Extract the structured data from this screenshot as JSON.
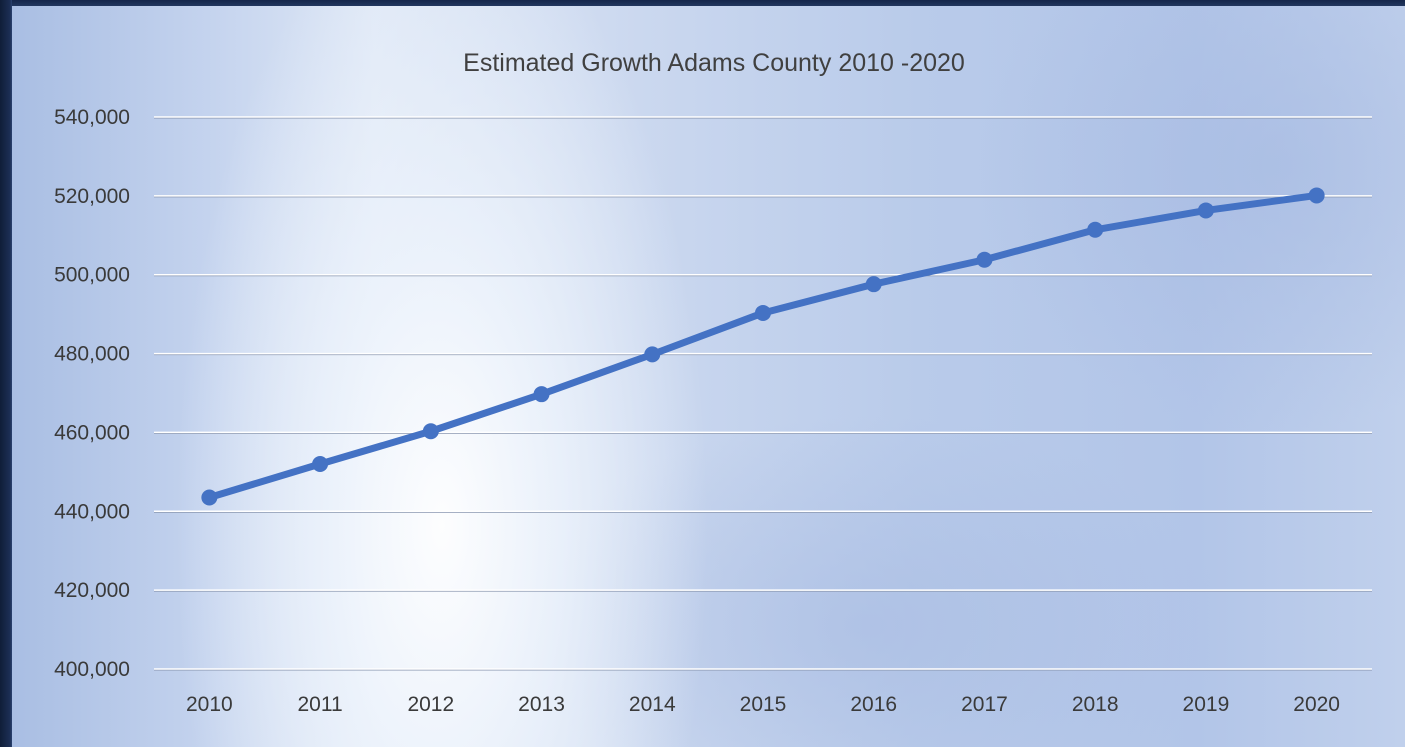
{
  "chart_data": {
    "type": "line",
    "title": "Estimated Growth Adams County  2010 -2020",
    "xlabel": "",
    "ylabel": "",
    "categories": [
      "2010",
      "2011",
      "2012",
      "2013",
      "2014",
      "2015",
      "2016",
      "2017",
      "2018",
      "2019",
      "2020"
    ],
    "series": [
      {
        "values": [
          443500,
          452000,
          460300,
          469700,
          479800,
          490300,
          497600,
          503800,
          511400,
          516300,
          520100
        ],
        "color": "#4472c4"
      }
    ],
    "ylim": [
      400000,
      540000
    ],
    "yticks": [
      400000,
      420000,
      440000,
      460000,
      480000,
      500000,
      520000,
      540000
    ],
    "ytick_labels": [
      "400,000",
      "420,000",
      "440,000",
      "460,000",
      "480,000",
      "500,000",
      "520,000",
      "540,000"
    ],
    "grid": true,
    "legend": "none",
    "gridline_color": "#ffffff"
  }
}
